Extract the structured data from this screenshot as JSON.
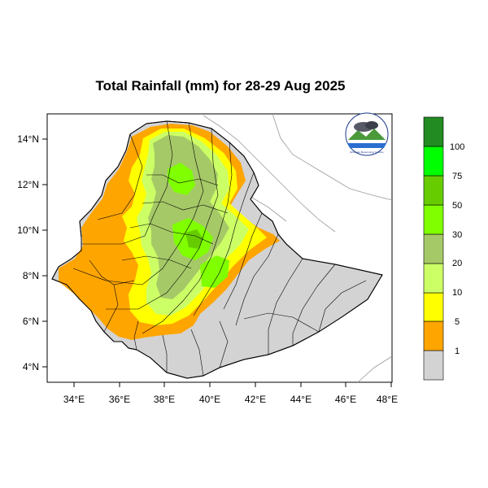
{
  "title": "Total Rainfall (mm) for 28-29 Aug 2025",
  "axes": {
    "x_ticks": [
      "34°E",
      "36°E",
      "38°E",
      "40°E",
      "42°E",
      "44°E",
      "46°E",
      "48°E"
    ],
    "y_ticks": [
      "14°N",
      "12°N",
      "10°N",
      "8°N",
      "6°N",
      "4°N"
    ]
  },
  "legend": {
    "bins": [
      {
        "label": "",
        "color": "#d3d3d3"
      },
      {
        "label": "1",
        "color": "#ffa500"
      },
      {
        "label": "5",
        "color": "#ffff00"
      },
      {
        "label": "10",
        "color": "#ccff66"
      },
      {
        "label": "20",
        "color": "#a6c967"
      },
      {
        "label": "30",
        "color": "#7fff00"
      },
      {
        "label": "50",
        "color": "#66cc00"
      },
      {
        "label": "75",
        "color": "#00ff00"
      },
      {
        "label": "100",
        "color": "#228b22"
      }
    ]
  },
  "logo_text": "Ethiopian Meteorology Institute"
}
